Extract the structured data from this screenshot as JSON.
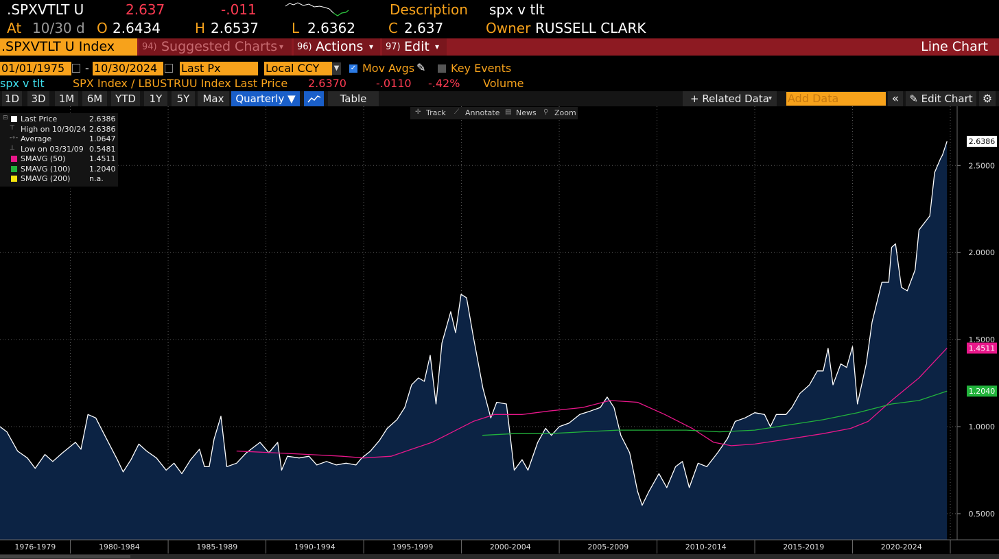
{
  "header": {
    "ticker": ".SPXVTLT U",
    "last": "2.637",
    "change": "-.011",
    "description_label": "Description",
    "description": "spx v tlt",
    "at_label": "At",
    "at": "10/30 d",
    "open_label": "O",
    "open": "2.6434",
    "high_label": "H",
    "high": "2.6537",
    "low_label": "L",
    "low": "2.6362",
    "close_label": "C",
    "close": "2.637",
    "owner_label": "Owner",
    "owner": "RUSSELL CLARK"
  },
  "menu": {
    "security": ".SPXVTLT U Index",
    "items": [
      {
        "num": "94)",
        "label": "Suggested Charts"
      },
      {
        "num": "96)",
        "label": "Actions"
      },
      {
        "num": "97)",
        "label": "Edit"
      }
    ],
    "chart_type": "Line Chart"
  },
  "controls": {
    "start": "01/01/1975",
    "separator": "-",
    "end": "10/30/2024",
    "field": "Last Px",
    "currency": "Local CCY",
    "mov_avgs": "Mov Avgs",
    "key_events": "Key Events"
  },
  "info": {
    "name": "spx v tlt",
    "description": "SPX Index / LBUSTRUU Index Last Price",
    "last": "2.6370",
    "change": "-.0110",
    "percent": "-.42%",
    "volume": "Volume"
  },
  "toolbar": {
    "ranges": [
      "1D",
      "3D",
      "1M",
      "6M",
      "YTD",
      "1Y",
      "5Y",
      "Max"
    ],
    "period": "Quarterly ▼",
    "table": "Table",
    "related": "+ Related Data",
    "add_data": "Add Data",
    "edit": "Edit Chart"
  },
  "chart_tools": [
    "Track",
    "Annotate",
    "News",
    "Zoom"
  ],
  "chart_data": {
    "type": "line",
    "xlim": [
      1976.4,
      2025.35
    ],
    "xticks": [
      1980,
      1985,
      1990,
      1995,
      2000,
      2005,
      2010,
      2015,
      2020,
      2025
    ],
    "xlabels": [
      {
        "value": 1978.2,
        "label": "1976-1979"
      },
      {
        "value": 1982.5,
        "label": "1980-1984"
      },
      {
        "value": 1987.5,
        "label": "1985-1989"
      },
      {
        "value": 1992.5,
        "label": "1990-1994"
      },
      {
        "value": 1997.5,
        "label": "1995-1999"
      },
      {
        "value": 2002.5,
        "label": "2000-2004"
      },
      {
        "value": 2007.5,
        "label": "2005-2009"
      },
      {
        "value": 2012.5,
        "label": "2010-2014"
      },
      {
        "value": 2017.5,
        "label": "2015-2019"
      },
      {
        "value": 2022.5,
        "label": "2020-2024"
      }
    ],
    "ylim": [
      0.35,
      2.84
    ],
    "yticks": [
      {
        "value": 0.5,
        "label": "0.5000"
      },
      {
        "value": 1.0,
        "label": "1.0000"
      },
      {
        "value": 1.5,
        "label": "1.5000"
      },
      {
        "value": 2.0,
        "label": "2.0000"
      },
      {
        "value": 2.5,
        "label": "2.5000"
      }
    ],
    "grid": true,
    "area_color": "#0c2344",
    "series": [
      {
        "name": "Last Price",
        "color": "#ffffff",
        "area": true,
        "legend_value": "2.6386",
        "x": [
          1976.4,
          1976.75,
          1977.3,
          1977.8,
          1978.2,
          1978.7,
          1979.1,
          1979.6,
          1980.26,
          1980.54,
          1980.9,
          1981.3,
          1981.8,
          1982.4,
          1982.7,
          1983.1,
          1983.5,
          1983.9,
          1984.4,
          1984.9,
          1985.3,
          1985.7,
          1986.15,
          1986.6,
          1986.86,
          1987.1,
          1987.35,
          1987.7,
          1988.0,
          1988.5,
          1989.0,
          1989.7,
          1990.15,
          1990.6,
          1990.8,
          1991.1,
          1991.7,
          1992.2,
          1992.6,
          1993.1,
          1993.6,
          1994.1,
          1994.6,
          1994.9,
          1995.35,
          1995.8,
          1996.2,
          1996.7,
          1997.1,
          1997.45,
          1997.8,
          1998.1,
          1998.4,
          1998.7,
          1999.0,
          1999.45,
          1999.7,
          1999.98,
          2000.26,
          2000.6,
          2001.1,
          2001.5,
          2001.8,
          2002.3,
          2002.7,
          2003.1,
          2003.4,
          2003.9,
          2004.3,
          2004.6,
          2005.0,
          2005.5,
          2006.05,
          2006.6,
          2007.1,
          2007.45,
          2007.8,
          2008.15,
          2008.6,
          2009.0,
          2009.24,
          2009.6,
          2010.1,
          2010.5,
          2010.95,
          2011.3,
          2011.65,
          2012.1,
          2012.55,
          2013.1,
          2013.6,
          2014.0,
          2014.5,
          2015.0,
          2015.5,
          2015.8,
          2016.1,
          2016.6,
          2016.9,
          2017.3,
          2017.8,
          2018.2,
          2018.5,
          2018.75,
          2019.0,
          2019.4,
          2019.7,
          2020.0,
          2020.25,
          2020.7,
          2021.0,
          2021.5,
          2021.85,
          2022.0,
          2022.2,
          2022.5,
          2022.8,
          2023.2,
          2023.4,
          2023.95,
          2024.2,
          2024.5,
          2024.6,
          2024.83
        ],
        "values": [
          1.0,
          0.97,
          0.86,
          0.82,
          0.76,
          0.84,
          0.8,
          0.85,
          0.91,
          0.87,
          1.07,
          1.05,
          0.94,
          0.81,
          0.74,
          0.81,
          0.9,
          0.86,
          0.82,
          0.75,
          0.79,
          0.73,
          0.81,
          0.87,
          0.77,
          0.77,
          0.93,
          1.06,
          0.77,
          0.79,
          0.85,
          0.91,
          0.85,
          0.91,
          0.75,
          0.83,
          0.82,
          0.83,
          0.78,
          0.8,
          0.78,
          0.79,
          0.78,
          0.82,
          0.86,
          0.92,
          0.99,
          1.04,
          1.11,
          1.24,
          1.28,
          1.26,
          1.41,
          1.13,
          1.48,
          1.66,
          1.54,
          1.76,
          1.74,
          1.52,
          1.22,
          1.05,
          1.14,
          1.13,
          0.75,
          0.81,
          0.75,
          0.91,
          0.99,
          0.95,
          1.0,
          1.02,
          1.07,
          1.09,
          1.11,
          1.17,
          1.11,
          0.95,
          0.85,
          0.63,
          0.5481,
          0.63,
          0.73,
          0.65,
          0.77,
          0.8,
          0.65,
          0.79,
          0.77,
          0.85,
          0.93,
          1.03,
          1.05,
          1.08,
          1.07,
          1.0,
          1.07,
          1.07,
          1.11,
          1.19,
          1.24,
          1.32,
          1.32,
          1.45,
          1.24,
          1.36,
          1.34,
          1.46,
          1.13,
          1.36,
          1.6,
          1.83,
          1.83,
          2.03,
          2.05,
          1.8,
          1.78,
          1.9,
          2.13,
          2.21,
          2.46,
          2.54,
          2.56,
          2.6386
        ]
      },
      {
        "name": "SMAVG (50)",
        "color": "#e8178a",
        "legend_value": "1.4511",
        "x": [
          1988.5,
          1990.4,
          1992.2,
          1993.9,
          1995.0,
          1996.4,
          1997.45,
          1998.5,
          1999.56,
          2000.6,
          2001.7,
          2003.1,
          2004.5,
          2006.2,
          2007.6,
          2009.0,
          2010.4,
          2011.8,
          2012.9,
          2013.8,
          2015.0,
          2016.8,
          2018.5,
          2019.9,
          2020.8,
          2022.0,
          2023.4,
          2024.83
        ],
        "values": [
          0.86,
          0.85,
          0.84,
          0.83,
          0.82,
          0.83,
          0.87,
          0.91,
          0.97,
          1.03,
          1.07,
          1.07,
          1.09,
          1.11,
          1.15,
          1.14,
          1.07,
          0.99,
          0.91,
          0.89,
          0.9,
          0.93,
          0.96,
          0.99,
          1.03,
          1.15,
          1.28,
          1.4511
        ]
      },
      {
        "name": "SMAVG (100)",
        "color": "#22b33c",
        "legend_value": "1.2040",
        "x": [
          2001.07,
          2002.7,
          2004.5,
          2006.2,
          2008.0,
          2009.7,
          2011.5,
          2013.2,
          2015.0,
          2016.75,
          2018.5,
          2020.25,
          2022.0,
          2023.4,
          2024.83
        ],
        "values": [
          0.95,
          0.96,
          0.96,
          0.97,
          0.98,
          0.98,
          0.98,
          0.97,
          0.98,
          1.01,
          1.04,
          1.08,
          1.13,
          1.15,
          1.204
        ]
      }
    ],
    "legend_extra": [
      {
        "label": "High on 10/30/24",
        "value": "2.6386",
        "icon": "high"
      },
      {
        "label": "Average",
        "value": "1.0647",
        "icon": "average"
      },
      {
        "label": "Low on 03/31/09",
        "value": "0.5481",
        "icon": "low"
      },
      {
        "label": "SMAVG (200)",
        "value": "n.a.",
        "icon": "square",
        "color": "#f5e50f"
      }
    ]
  }
}
